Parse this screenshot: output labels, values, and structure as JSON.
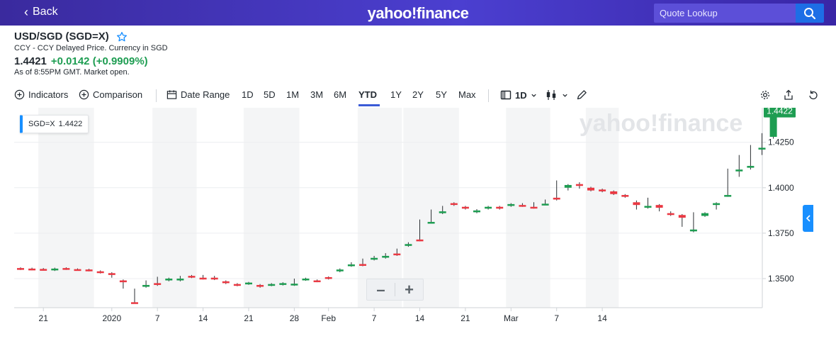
{
  "header": {
    "back_label": "Back",
    "logo_text": "yahoo!finance",
    "search_placeholder": "Quote Lookup"
  },
  "quote": {
    "title": "USD/SGD (SGD=X)",
    "subtitle": "CCY - CCY Delayed Price. Currency in SGD",
    "price": "1.4421",
    "change": "+0.0142 (+0.9909%)",
    "as_of": "As of 8:55PM GMT. Market open."
  },
  "toolbar": {
    "indicators": "Indicators",
    "comparison": "Comparison",
    "date_range": "Date Range",
    "ranges": [
      "1D",
      "5D",
      "1M",
      "3M",
      "6M",
      "YTD",
      "1Y",
      "2Y",
      "5Y",
      "Max"
    ],
    "active_range": "YTD",
    "interval": "1D"
  },
  "legend_chip": {
    "symbol": "SGD=X",
    "value": "1.4422"
  },
  "colors": {
    "up": "#1e9d52",
    "down": "#ea3943",
    "accent": "#3a5bd6",
    "header": "#3e2ab5"
  },
  "icons": [
    "back-chevron-icon",
    "search-icon",
    "star-icon",
    "indicators-plus-icon",
    "comparison-plus-icon",
    "calendar-icon",
    "candlestick-icon",
    "draw-icon",
    "settings-gear-icon",
    "share-icon",
    "reset-icon",
    "collapse-chevron-icon"
  ],
  "chart_data": {
    "type": "candlestick",
    "watermark": "yahoo!finance",
    "current_price_label": "1.4422",
    "y_ticks": [
      "1.4250",
      "1.4000",
      "1.3750",
      "1.3500"
    ],
    "y_range": [
      1.334,
      1.444
    ],
    "x_tick_labels": [
      {
        "label": "21",
        "index": 2
      },
      {
        "label": "2020",
        "index": 8
      },
      {
        "label": "7",
        "index": 12
      },
      {
        "label": "14",
        "index": 16
      },
      {
        "label": "21",
        "index": 20
      },
      {
        "label": "28",
        "index": 24
      },
      {
        "label": "Feb",
        "index": 27
      },
      {
        "label": "7",
        "index": 31
      },
      {
        "label": "14",
        "index": 35
      },
      {
        "label": "21",
        "index": 39
      },
      {
        "label": "Mar",
        "index": 43
      },
      {
        "label": "7",
        "index": 47
      },
      {
        "label": "14",
        "index": 51
      }
    ],
    "shaded_weeks": [
      [
        2,
        6
      ],
      [
        12,
        15
      ],
      [
        20,
        24
      ],
      [
        30,
        33
      ],
      [
        34,
        38
      ],
      [
        43,
        46
      ],
      [
        50,
        52
      ]
    ],
    "candles": [
      {
        "o": 1.3558,
        "c": 1.355,
        "h": 1.3562,
        "l": 1.3547
      },
      {
        "o": 1.3555,
        "c": 1.355,
        "h": 1.356,
        "l": 1.3546
      },
      {
        "o": 1.3553,
        "c": 1.3548,
        "h": 1.3558,
        "l": 1.3544
      },
      {
        "o": 1.3548,
        "c": 1.3555,
        "h": 1.356,
        "l": 1.3542
      },
      {
        "o": 1.3558,
        "c": 1.3553,
        "h": 1.3562,
        "l": 1.3548
      },
      {
        "o": 1.3552,
        "c": 1.3548,
        "h": 1.3556,
        "l": 1.3544
      },
      {
        "o": 1.355,
        "c": 1.3545,
        "h": 1.3554,
        "l": 1.354
      },
      {
        "o": 1.354,
        "c": 1.3532,
        "h": 1.3545,
        "l": 1.3528
      },
      {
        "o": 1.353,
        "c": 1.352,
        "h": 1.3535,
        "l": 1.3505
      },
      {
        "o": 1.349,
        "c": 1.348,
        "h": 1.3495,
        "l": 1.3445
      },
      {
        "o": 1.337,
        "c": 1.3368,
        "h": 1.3445,
        "l": 1.3365
      },
      {
        "o": 1.3455,
        "c": 1.3465,
        "h": 1.349,
        "l": 1.345
      },
      {
        "o": 1.3475,
        "c": 1.3465,
        "h": 1.351,
        "l": 1.346
      },
      {
        "o": 1.349,
        "c": 1.35,
        "h": 1.3505,
        "l": 1.3485
      },
      {
        "o": 1.349,
        "c": 1.35,
        "h": 1.3515,
        "l": 1.3485
      },
      {
        "o": 1.3515,
        "c": 1.3508,
        "h": 1.352,
        "l": 1.3503
      },
      {
        "o": 1.3505,
        "c": 1.3504,
        "h": 1.352,
        "l": 1.3495
      },
      {
        "o": 1.3505,
        "c": 1.3498,
        "h": 1.3515,
        "l": 1.3492
      },
      {
        "o": 1.3485,
        "c": 1.3475,
        "h": 1.349,
        "l": 1.347
      },
      {
        "o": 1.347,
        "c": 1.3462,
        "h": 1.3475,
        "l": 1.3458
      },
      {
        "o": 1.347,
        "c": 1.3478,
        "h": 1.3482,
        "l": 1.3466
      },
      {
        "o": 1.3465,
        "c": 1.3455,
        "h": 1.347,
        "l": 1.345
      },
      {
        "o": 1.3462,
        "c": 1.347,
        "h": 1.3475,
        "l": 1.3458
      },
      {
        "o": 1.3468,
        "c": 1.3475,
        "h": 1.348,
        "l": 1.3462
      },
      {
        "o": 1.3464,
        "c": 1.3472,
        "h": 1.35,
        "l": 1.346
      },
      {
        "o": 1.3492,
        "c": 1.35,
        "h": 1.3505,
        "l": 1.3488
      },
      {
        "o": 1.349,
        "c": 1.3483,
        "h": 1.3495,
        "l": 1.348
      },
      {
        "o": 1.3508,
        "c": 1.35,
        "h": 1.3512,
        "l": 1.3495
      },
      {
        "o": 1.354,
        "c": 1.355,
        "h": 1.3556,
        "l": 1.3535
      },
      {
        "o": 1.357,
        "c": 1.3578,
        "h": 1.359,
        "l": 1.3565
      },
      {
        "o": 1.358,
        "c": 1.3572,
        "h": 1.361,
        "l": 1.3568
      },
      {
        "o": 1.3605,
        "c": 1.3614,
        "h": 1.3625,
        "l": 1.36
      },
      {
        "o": 1.3615,
        "c": 1.3625,
        "h": 1.364,
        "l": 1.361
      },
      {
        "o": 1.3638,
        "c": 1.363,
        "h": 1.3665,
        "l": 1.3625
      },
      {
        "o": 1.368,
        "c": 1.369,
        "h": 1.37,
        "l": 1.3675
      },
      {
        "o": 1.3715,
        "c": 1.3708,
        "h": 1.3825,
        "l": 1.3705
      },
      {
        "o": 1.381,
        "c": 1.3812,
        "h": 1.388,
        "l": 1.3805
      },
      {
        "o": 1.386,
        "c": 1.387,
        "h": 1.39,
        "l": 1.3855
      },
      {
        "o": 1.3915,
        "c": 1.3908,
        "h": 1.392,
        "l": 1.39
      },
      {
        "o": 1.3895,
        "c": 1.3885,
        "h": 1.39,
        "l": 1.388
      },
      {
        "o": 1.3865,
        "c": 1.3875,
        "h": 1.3882,
        "l": 1.386
      },
      {
        "o": 1.3885,
        "c": 1.3895,
        "h": 1.39,
        "l": 1.388
      },
      {
        "o": 1.3895,
        "c": 1.3885,
        "h": 1.39,
        "l": 1.388
      },
      {
        "o": 1.39,
        "c": 1.391,
        "h": 1.3915,
        "l": 1.3895
      },
      {
        "o": 1.3905,
        "c": 1.39,
        "h": 1.3915,
        "l": 1.3895
      },
      {
        "o": 1.3895,
        "c": 1.389,
        "h": 1.392,
        "l": 1.3885
      },
      {
        "o": 1.391,
        "c": 1.3912,
        "h": 1.3935,
        "l": 1.3905
      },
      {
        "o": 1.3945,
        "c": 1.3935,
        "h": 1.404,
        "l": 1.393
      },
      {
        "o": 1.4,
        "c": 1.4015,
        "h": 1.402,
        "l": 1.3985
      },
      {
        "o": 1.402,
        "c": 1.401,
        "h": 1.403,
        "l": 1.3995
      },
      {
        "o": 1.4,
        "c": 1.3985,
        "h": 1.4005,
        "l": 1.398
      },
      {
        "o": 1.399,
        "c": 1.398,
        "h": 1.3995,
        "l": 1.3975
      },
      {
        "o": 1.398,
        "c": 1.3965,
        "h": 1.3985,
        "l": 1.396
      },
      {
        "o": 1.396,
        "c": 1.395,
        "h": 1.3965,
        "l": 1.3945
      },
      {
        "o": 1.392,
        "c": 1.3905,
        "h": 1.393,
        "l": 1.388
      },
      {
        "o": 1.389,
        "c": 1.39,
        "h": 1.3945,
        "l": 1.3885
      },
      {
        "o": 1.3905,
        "c": 1.389,
        "h": 1.391,
        "l": 1.387
      },
      {
        "o": 1.386,
        "c": 1.385,
        "h": 1.387,
        "l": 1.3845
      },
      {
        "o": 1.385,
        "c": 1.3835,
        "h": 1.3855,
        "l": 1.3785
      },
      {
        "o": 1.376,
        "c": 1.377,
        "h": 1.3865,
        "l": 1.3755
      },
      {
        "o": 1.3845,
        "c": 1.386,
        "h": 1.3865,
        "l": 1.384
      },
      {
        "o": 1.3905,
        "c": 1.3915,
        "h": 1.392,
        "l": 1.388
      },
      {
        "o": 1.3955,
        "c": 1.396,
        "h": 1.4105,
        "l": 1.395
      },
      {
        "o": 1.409,
        "c": 1.41,
        "h": 1.418,
        "l": 1.406
      },
      {
        "o": 1.411,
        "c": 1.412,
        "h": 1.4235,
        "l": 1.41
      },
      {
        "o": 1.421,
        "c": 1.422,
        "h": 1.43,
        "l": 1.418
      },
      {
        "o": 1.428,
        "c": 1.442,
        "h": 1.444,
        "l": 1.427
      }
    ]
  }
}
